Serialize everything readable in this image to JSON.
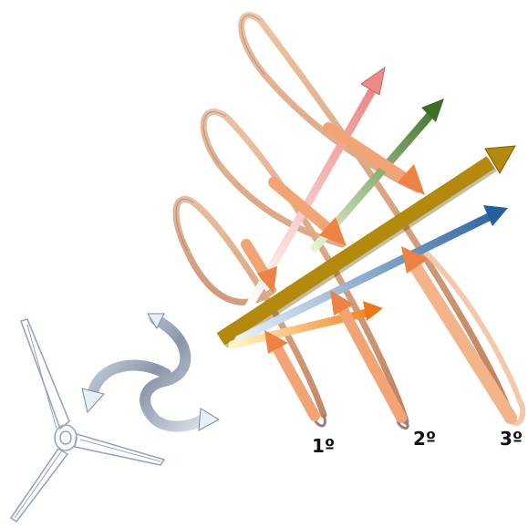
{
  "labels": {
    "ring_1": "1º",
    "ring_2": "2º",
    "ring_3": "3º"
  },
  "colors": {
    "ring_dark": "#a8623a",
    "ring_light": "#f6c6a2",
    "axis": "#b08a10",
    "arrow_orange": "#ee8a4c",
    "arrow_red": "#ee8a86",
    "arrow_green": "#4a7c32",
    "arrow_blue": "#2f6aa6",
    "arrow_yellow": "#f09a1c",
    "turbine": "#98a4bc"
  },
  "icons": [
    "wind-turbine-icon",
    "curved-rotation-arrows-icon"
  ]
}
